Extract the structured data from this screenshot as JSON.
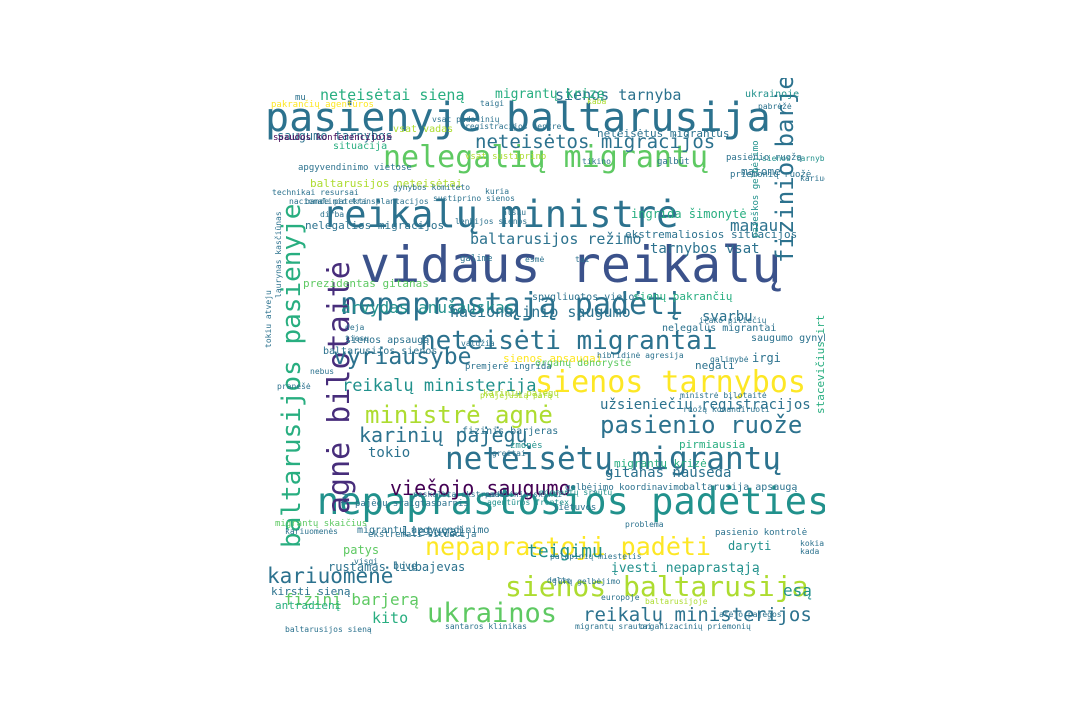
{
  "palette": [
    "#440154",
    "#472d7b",
    "#3b528b",
    "#2c728e",
    "#21918c",
    "#28ae80",
    "#5ec962",
    "#addc30",
    "#fde725"
  ],
  "words": [
    {
      "text": "vidaus reikalų",
      "c": 2
    },
    {
      "text": "pasienyje baltarusija",
      "c": 3
    },
    {
      "text": "reikalų ministrė",
      "c": 3
    },
    {
      "text": "nepaprastosios padėties",
      "c": 4
    },
    {
      "text": "neteisėtų migrantų",
      "c": 3
    },
    {
      "text": "nelegalių migrantų",
      "c": 6
    },
    {
      "text": "nepaprastąją padėtį",
      "c": 3
    },
    {
      "text": "neteisėti migrantai",
      "c": 3
    },
    {
      "text": "sienos tarnybos",
      "c": 8
    },
    {
      "text": "sienos baltarusija",
      "c": 7
    },
    {
      "text": "nepaprastoji padėti",
      "c": 8
    },
    {
      "text": "ministrė agnė",
      "c": 7
    },
    {
      "text": "agnė bilotaitė",
      "c": 1
    },
    {
      "text": "baltarusijos pasienyje",
      "c": 5
    },
    {
      "text": "fizinio barjero",
      "c": 3
    },
    {
      "text": "pasienio ruože",
      "c": 3
    },
    {
      "text": "viešojo saugumo",
      "c": 0
    },
    {
      "text": "kariuomenė",
      "c": 3
    },
    {
      "text": "ukrainos",
      "c": 6
    },
    {
      "text": "reikalų ministerijos",
      "c": 3
    },
    {
      "text": "vyriausybė",
      "c": 3
    },
    {
      "text": "neteisėtos migracijos",
      "c": 3
    },
    {
      "text": "karinių pajėgų",
      "c": 3
    },
    {
      "text": "reikalų ministerija",
      "c": 4
    },
    {
      "text": "arvydas anušauskas",
      "c": 4
    },
    {
      "text": "nacionalinio saugumo",
      "c": 3
    },
    {
      "text": "baltarusijos režimo",
      "c": 3
    },
    {
      "text": "neteisėtai sieną",
      "c": 5
    },
    {
      "text": "sienos tarnyba",
      "c": 3
    },
    {
      "text": "migrantų krizę",
      "c": 5
    },
    {
      "text": "manau",
      "c": 3
    },
    {
      "text": "tarnybos vsat",
      "c": 3
    },
    {
      "text": "svarbu",
      "c": 3
    },
    {
      "text": "fizinį barjerą",
      "c": 6
    },
    {
      "text": "teigimu",
      "c": 4
    },
    {
      "text": "esą",
      "c": 4
    },
    {
      "text": "kito",
      "c": 5
    },
    {
      "text": "užsieniečių registracijos",
      "c": 3
    },
    {
      "text": "gitanas nausėda",
      "c": 3
    },
    {
      "text": "tokio",
      "c": 3
    },
    {
      "text": "lietuvai",
      "c": 3
    },
    {
      "text": "patys",
      "c": 6
    },
    {
      "text": "rustamas liubajevas",
      "c": 3
    },
    {
      "text": "įvesti nepaprastąją",
      "c": 4
    },
    {
      "text": "saugumo tarnybos",
      "c": 3
    },
    {
      "text": "baltarusijos neteisėtai",
      "c": 7
    },
    {
      "text": "ingrida šimonytė",
      "c": 5
    },
    {
      "text": "ekstremaliosios situacijos",
      "c": 3
    },
    {
      "text": "nelegalios migracijos",
      "c": 3
    },
    {
      "text": "prezidentas gitanas",
      "c": 6
    },
    {
      "text": "spygliuotos vielos",
      "c": 3
    },
    {
      "text": "sienų pakrančių",
      "c": 5
    },
    {
      "text": "matome",
      "c": 3
    },
    {
      "text": "pakrančių agentūros",
      "c": 8
    },
    {
      "text": "vsat vadas",
      "c": 7
    },
    {
      "text": "spaudos konferencijoje",
      "c": 0
    },
    {
      "text": "sienos apsaugai",
      "c": 8
    },
    {
      "text": "stacevičius irt",
      "c": 5
    },
    {
      "text": "daryti",
      "c": 4
    },
    {
      "text": "baltarusija apsaugą",
      "c": 3
    },
    {
      "text": "ukrainoje",
      "c": 4
    },
    {
      "text": "kirsti sieną",
      "c": 3
    },
    {
      "text": "migrantų krizė",
      "c": 5
    },
    {
      "text": "pirmiausia",
      "c": 5
    },
    {
      "text": "neteisėtus migrantus",
      "c": 3
    },
    {
      "text": "sienos apsaugą",
      "c": 3
    },
    {
      "text": "negali",
      "c": 3
    },
    {
      "text": "irgi",
      "c": 3
    },
    {
      "text": "saugumo gynybos",
      "c": 3
    },
    {
      "text": "nelegalūs migrantai",
      "c": 3
    },
    {
      "text": "karinių pajėgų",
      "c": 7
    },
    {
      "text": "fizinis barjeras",
      "c": 3
    },
    {
      "text": "migrantų apgyvendinimo",
      "c": 3
    },
    {
      "text": "ekstremali situacija",
      "c": 3
    },
    {
      "text": "pajėgų sraigtasparnis",
      "c": 3
    },
    {
      "text": "vsat sustiprino",
      "c": 7
    },
    {
      "text": "sienos tarnybai",
      "c": 4
    },
    {
      "text": "baltarusijos sienos",
      "c": 3
    },
    {
      "text": "organų donorystė",
      "c": 6
    },
    {
      "text": "premjerė ingrida",
      "c": 3
    },
    {
      "text": "lenkijos sienos",
      "c": 3
    },
    {
      "text": "gynybos komiteto",
      "c": 3
    },
    {
      "text": "apgyvendinimo vietose",
      "c": 3
    },
    {
      "text": "pasienio ruožą",
      "c": 3
    },
    {
      "text": "paieškos gelbėjimo",
      "c": 4
    },
    {
      "text": "priemonių ruožė",
      "c": 3
    },
    {
      "text": "ministrė bilotaitė",
      "c": 3
    },
    {
      "text": "migrantų srautų",
      "c": 4
    },
    {
      "text": "paskelbta ekstremali",
      "c": 3
    },
    {
      "text": "migrantų skaičius",
      "c": 6
    },
    {
      "text": "lietuvos",
      "c": 3
    },
    {
      "text": "situacija",
      "c": 5
    },
    {
      "text": "mu",
      "c": 3
    },
    {
      "text": "taigi",
      "c": 3
    },
    {
      "text": "pabrėžė",
      "c": 3
    },
    {
      "text": "kaba",
      "c": 7
    },
    {
      "text": "galbūt",
      "c": 3
    },
    {
      "text": "tikino",
      "c": 3
    },
    {
      "text": "dirba",
      "c": 3
    },
    {
      "text": "alšku",
      "c": 3
    },
    {
      "text": "galime",
      "c": 3
    },
    {
      "text": "deja",
      "c": 3
    },
    {
      "text": "tiesų",
      "c": 3
    },
    {
      "text": "nebus",
      "c": 3
    },
    {
      "text": "pranešė",
      "c": 3
    },
    {
      "text": "žmonės",
      "c": 4
    },
    {
      "text": "greitai",
      "c": 3
    },
    {
      "text": "kokia",
      "c": 3
    },
    {
      "text": "kada",
      "c": 3
    },
    {
      "text": "problema",
      "c": 3
    },
    {
      "text": "delto",
      "c": 3
    },
    {
      "text": "europoje",
      "c": 3
    },
    {
      "text": "antradienį",
      "c": 5
    },
    {
      "text": "buvę",
      "c": 3
    },
    {
      "text": "tų",
      "c": 3
    },
    {
      "text": "visgi",
      "c": 3
    },
    {
      "text": "atėjo pajėgos",
      "c": 3
    },
    {
      "text": "santaros klinikas",
      "c": 3
    },
    {
      "text": "organizacinių priemonių",
      "c": 3
    },
    {
      "text": "baltarusijos sieną",
      "c": 3
    },
    {
      "text": "migrantų srautai",
      "c": 3
    },
    {
      "text": "baltarusijoje",
      "c": 7
    },
    {
      "text": "pasienio kontrolė",
      "c": 3
    },
    {
      "text": "hibridinė agresija",
      "c": 3
    },
    {
      "text": "prajėjusią parą",
      "c": 7
    },
    {
      "text": "ruožą komandiruoti",
      "c": 3
    },
    {
      "text": "irako piliečių",
      "c": 3
    },
    {
      "text": "sustiprino sienos",
      "c": 3
    },
    {
      "text": "vsat padalinių",
      "c": 3
    },
    {
      "text": "registracijos centre",
      "c": 3
    },
    {
      "text": "technikai resursai",
      "c": 3
    },
    {
      "text": "nacionalinio transplantacijos",
      "c": 3
    },
    {
      "text": "bande patekti",
      "c": 3
    },
    {
      "text": "kuria",
      "c": 3
    },
    {
      "text": "galimybė",
      "c": 3
    },
    {
      "text": "gelbėjimo koordinavimo",
      "c": 3
    },
    {
      "text": "padalinių skirti",
      "c": 3
    },
    {
      "text": "agentūros frontex",
      "c": 4
    },
    {
      "text": "jūrų gelbėjimo",
      "c": 3
    },
    {
      "text": "palapinių miestelis",
      "c": 3
    },
    {
      "text": "laurynas kasčiūnas",
      "c": 3
    },
    {
      "text": "tokiu atveju",
      "c": 3
    },
    {
      "text": "kariuomenės karinių",
      "c": 3
    },
    {
      "text": "kariuomenės",
      "c": 3
    },
    {
      "text": "valdžia",
      "c": 3
    },
    {
      "text": "esmė",
      "c": 3
    },
    {
      "text": "tai",
      "c": 3
    }
  ]
}
